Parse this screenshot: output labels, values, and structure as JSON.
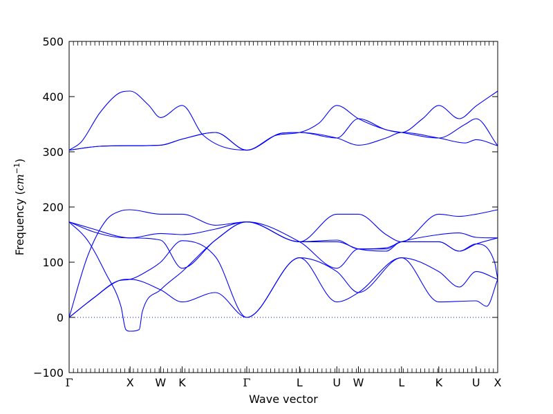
{
  "chart_data": {
    "type": "line",
    "title": "",
    "xlabel": "Wave vector",
    "ylabel": "Frequency (",
    "ylabel_unit": "cm",
    "ylabel_unit_exp": "−1",
    "ylabel_close": ")",
    "ylim": [
      -100,
      500
    ],
    "yticks": [
      -100,
      0,
      100,
      200,
      300,
      400,
      500
    ],
    "zero_line": true,
    "line_color": "#0000ff",
    "kpath": [
      {
        "label": "Γ",
        "pos": 0.0
      },
      {
        "label": "X",
        "pos": 1.0
      },
      {
        "label": "W",
        "pos": 1.5
      },
      {
        "label": "K",
        "pos": 1.854
      },
      {
        "label": "Γ",
        "pos": 2.914
      },
      {
        "label": "L",
        "pos": 3.78
      },
      {
        "label": "U",
        "pos": 4.392
      },
      {
        "label": "W",
        "pos": 4.746
      },
      {
        "label": "L",
        "pos": 5.453
      },
      {
        "label": "K",
        "pos": 6.065
      },
      {
        "label": "U",
        "pos": 6.677
      },
      {
        "label": "X",
        "pos": 7.031
      }
    ],
    "series": [
      {
        "x": [
          0.0,
          0.4,
          0.8,
          0.95,
          1.0,
          1.5,
          1.854,
          2.4,
          2.914,
          3.78,
          4.392,
          4.746,
          5.453,
          6.065,
          6.677,
          6.85,
          7.031
        ],
        "values": [
          0,
          35,
          66,
          69,
          69,
          50,
          28,
          45,
          0,
          108,
          28,
          45,
          108,
          28,
          30,
          20,
          69
        ]
      },
      {
        "x": [
          0.0,
          0.4,
          0.8,
          1.0,
          1.3,
          1.5,
          1.854,
          2.4,
          2.914,
          3.78,
          4.392,
          4.746,
          5.453,
          6.065,
          6.4,
          6.677,
          7.031
        ],
        "values": [
          0,
          35,
          66,
          69,
          85,
          100,
          139,
          110,
          0,
          108,
          83,
          45,
          108,
          83,
          55,
          83,
          69
        ]
      },
      {
        "x": [
          0.0,
          0.3,
          0.6,
          0.85,
          0.93,
          1.0,
          1.15,
          1.2,
          1.5,
          1.854,
          2.4,
          2.914,
          3.78,
          4.392,
          4.746,
          5.2,
          5.453,
          6.065,
          6.4,
          6.677,
          6.98,
          7.031
        ],
        "values": [
          173,
          140,
          80,
          20,
          -22,
          -25,
          -22,
          10,
          50,
          83,
          140,
          173,
          137,
          137,
          124,
          120,
          137,
          137,
          120,
          133,
          100,
          69
        ]
      },
      {
        "x": [
          0.0,
          0.4,
          0.8,
          1.0,
          1.5,
          1.854,
          2.4,
          2.914,
          3.78,
          4.392,
          4.746,
          5.2,
          5.453,
          6.065,
          6.4,
          6.677,
          7.031
        ],
        "values": [
          173,
          155,
          145,
          144,
          140,
          89,
          140,
          173,
          137,
          89,
          124,
          124,
          137,
          137,
          120,
          133,
          144
        ]
      },
      {
        "x": [
          0.0,
          0.4,
          0.8,
          1.0,
          1.5,
          1.854,
          2.4,
          2.914,
          3.78,
          4.392,
          4.746,
          5.2,
          5.453,
          6.065,
          6.4,
          6.677,
          7.031
        ],
        "values": [
          173,
          160,
          147,
          144,
          152,
          150,
          160,
          173,
          137,
          140,
          124,
          126,
          137,
          150,
          153,
          145,
          144
        ]
      },
      {
        "x": [
          0.0,
          0.3,
          0.6,
          0.85,
          1.0,
          1.5,
          1.854,
          2.4,
          2.914,
          3.78,
          4.392,
          4.746,
          5.2,
          5.453,
          6.065,
          6.4,
          6.677,
          7.031
        ],
        "values": [
          0,
          110,
          175,
          193,
          195,
          187,
          187,
          167,
          173,
          137,
          187,
          187,
          150,
          137,
          187,
          183,
          187,
          195
        ]
      },
      {
        "x": [
          0.0,
          0.5,
          1.0,
          1.5,
          1.854,
          2.4,
          2.914,
          3.5,
          3.78,
          4.392,
          4.746,
          5.2,
          5.453,
          6.065,
          6.5,
          6.677,
          7.031
        ],
        "values": [
          303,
          310,
          311,
          312,
          323,
          335,
          303,
          334,
          335,
          325,
          312,
          325,
          335,
          325,
          316,
          322,
          311
        ]
      },
      {
        "x": [
          0.0,
          0.5,
          1.0,
          1.5,
          1.854,
          2.4,
          2.914,
          3.5,
          3.78,
          4.392,
          4.746,
          5.2,
          5.453,
          6.065,
          6.5,
          6.677,
          7.031
        ],
        "values": [
          303,
          310,
          311,
          312,
          323,
          335,
          303,
          334,
          335,
          325,
          360,
          340,
          335,
          325,
          350,
          360,
          311
        ]
      },
      {
        "x": [
          0.0,
          0.2,
          0.5,
          0.8,
          1.0,
          1.3,
          1.5,
          1.854,
          2.2,
          2.914,
          3.4,
          3.78,
          4.1,
          4.392,
          4.746,
          5.2,
          5.453,
          5.8,
          6.065,
          6.4,
          6.677,
          7.031
        ],
        "values": [
          303,
          318,
          370,
          405,
          410,
          385,
          362,
          384,
          330,
          303,
          330,
          335,
          352,
          384,
          360,
          340,
          335,
          360,
          384,
          360,
          383,
          410
        ]
      }
    ]
  }
}
